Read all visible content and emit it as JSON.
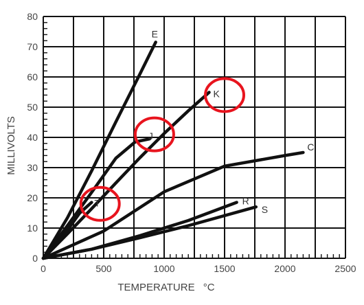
{
  "chart_data": {
    "type": "line",
    "xlabel": "TEMPERATURE",
    "xunit": "°C",
    "ylabel": "MILLIVOLTS",
    "xlim": [
      0,
      2500
    ],
    "ylim": [
      0,
      80
    ],
    "xticks": [
      0,
      500,
      1000,
      1500,
      2000,
      2500
    ],
    "yticks": [
      0,
      10,
      20,
      30,
      40,
      50,
      60,
      70,
      80
    ],
    "grid": true,
    "grid_minor_x_step": 250,
    "series": [
      {
        "name": "E",
        "x": [
          0,
          200,
          400,
          600,
          800,
          930
        ],
        "y": [
          0,
          13.4,
          28.9,
          45.1,
          61.0,
          71.5
        ]
      },
      {
        "name": "J",
        "x": [
          0,
          200,
          400,
          600,
          760,
          880
        ],
        "y": [
          0,
          10.8,
          21.8,
          33.1,
          38.5,
          39.5
        ]
      },
      {
        "name": "K",
        "x": [
          0,
          200,
          400,
          600,
          800,
          1000,
          1200,
          1372
        ],
        "y": [
          0,
          8.1,
          16.4,
          24.9,
          33.3,
          41.3,
          48.8,
          54.9
        ]
      },
      {
        "name": "T",
        "x": [
          0,
          100,
          200,
          300,
          400
        ],
        "y": [
          0,
          4.3,
          9.3,
          14.9,
          18.5
        ]
      },
      {
        "name": "C",
        "x": [
          0,
          500,
          1000,
          1500,
          2000,
          2150
        ],
        "y": [
          0,
          9.0,
          22.0,
          30.5,
          34.0,
          35.0
        ]
      },
      {
        "name": "R",
        "x": [
          0,
          400,
          800,
          1200,
          1600
        ],
        "y": [
          0,
          3.0,
          7.5,
          12.5,
          18.5
        ]
      },
      {
        "name": "S",
        "x": [
          0,
          400,
          800,
          1200,
          1760
        ],
        "y": [
          0,
          3.0,
          6.8,
          10.8,
          17.0
        ]
      }
    ],
    "highlight_circles": [
      {
        "around": "T",
        "x": 470,
        "y": 18
      },
      {
        "around": "J",
        "x": 920,
        "y": 41
      },
      {
        "around": "K",
        "x": 1500,
        "y": 54
      }
    ],
    "colors": {
      "line": "#111111",
      "grid": "#111111",
      "highlight": "#e8141e",
      "text": "#444444"
    }
  }
}
